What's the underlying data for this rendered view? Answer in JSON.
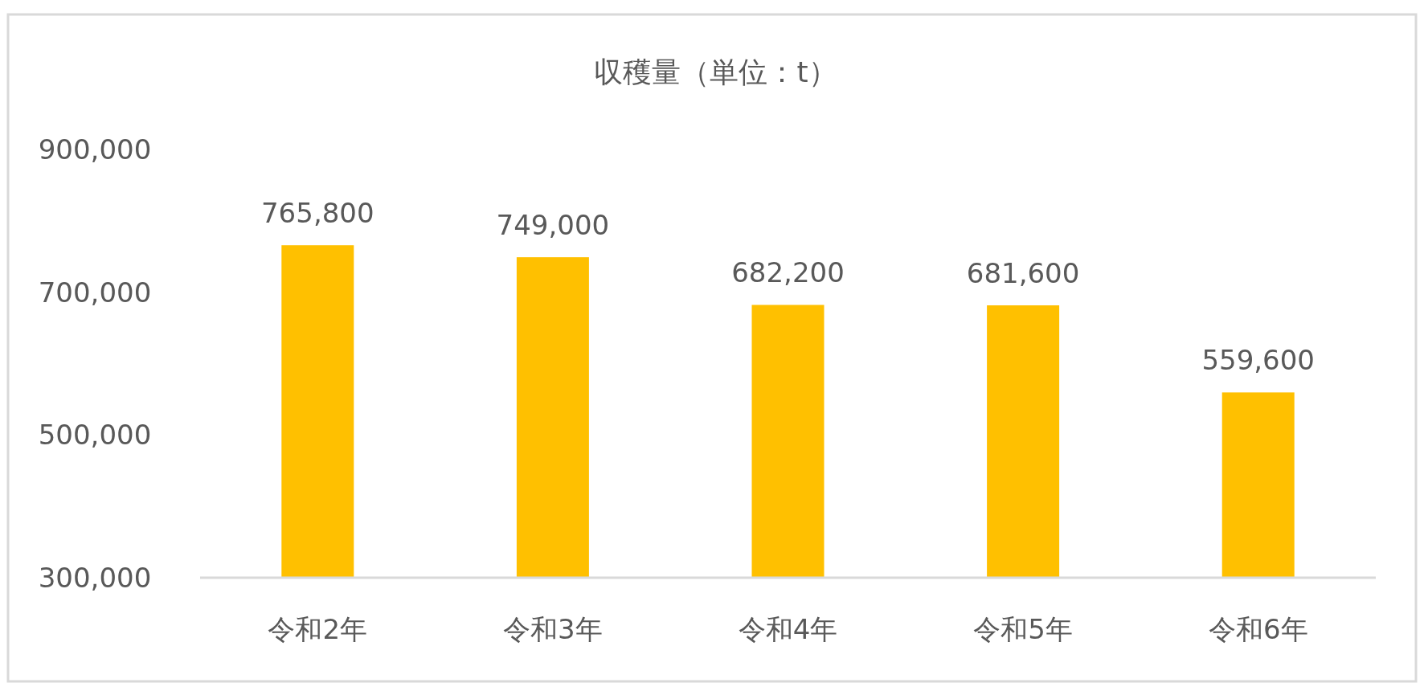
{
  "chart_data": {
    "type": "bar",
    "title": "収穫量（単位：t）",
    "categories": [
      "令和2年",
      "令和3年",
      "令和4年",
      "令和5年",
      "令和6年"
    ],
    "values": [
      765800,
      749000,
      682200,
      681600,
      559600
    ],
    "color": "#ffc000",
    "ylim": [
      300000,
      900000
    ],
    "yticks": [
      {
        "value": 300000,
        "label": "300,000"
      },
      {
        "value": 500000,
        "label": "500,000"
      },
      {
        "value": 700000,
        "label": "700,000"
      },
      {
        "value": 900000,
        "label": "900,000"
      }
    ],
    "value_labels": [
      "765,800",
      "749,000",
      "682,200",
      "681,600",
      "559,600"
    ]
  }
}
